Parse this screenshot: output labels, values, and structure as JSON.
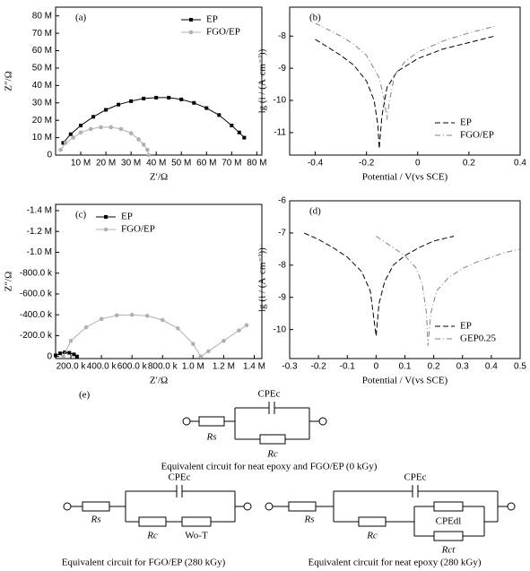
{
  "chart_data": [
    {
      "type": "line",
      "panel_label": "(a)",
      "x_label": "Z′/Ω",
      "y_label": "Z″/Ω",
      "legend": "upper center",
      "xlim": [
        0,
        82000000
      ],
      "ylim": [
        0,
        85000000
      ],
      "xticks": [
        {
          "value": 10000000,
          "label": "10 M"
        },
        {
          "value": 20000000,
          "label": "20 M"
        },
        {
          "value": 30000000,
          "label": "30 M"
        },
        {
          "value": 40000000,
          "label": "40 M"
        },
        {
          "value": 50000000,
          "label": "50 M"
        },
        {
          "value": 60000000,
          "label": "60 M"
        },
        {
          "value": 70000000,
          "label": "70 M"
        },
        {
          "value": 80000000,
          "label": "80 M"
        }
      ],
      "yticks": [
        0,
        {
          "value": 10000000,
          "label": "10 M"
        },
        {
          "value": 20000000,
          "label": "20 M"
        },
        {
          "value": 30000000,
          "label": "30 M"
        },
        {
          "value": 40000000,
          "label": "40 M"
        },
        {
          "value": 50000000,
          "label": "50 M"
        },
        {
          "value": 60000000,
          "label": "60 M"
        },
        {
          "value": 70000000,
          "label": "70 M"
        },
        {
          "value": 80000000,
          "label": "80 M"
        }
      ],
      "series": [
        {
          "name": "EP",
          "color": "#000000",
          "marker": "square",
          "line_style": "solid",
          "x": [
            3000000,
            6000000,
            10000000,
            15000000,
            20000000,
            25000000,
            30000000,
            35000000,
            40000000,
            45000000,
            50000000,
            55000000,
            60000000,
            65000000,
            70000000,
            73000000,
            75000000
          ],
          "values": [
            7000000,
            12000000,
            17000000,
            22000000,
            26000000,
            29000000,
            31000000,
            32500000,
            33000000,
            33000000,
            32000000,
            30000000,
            27000000,
            23000000,
            17000000,
            13000000,
            10000000
          ]
        },
        {
          "name": "FGO/EP",
          "color": "#b0b0b0",
          "marker": "circle",
          "line_style": "solid",
          "x": [
            2000000,
            4000000,
            7000000,
            10000000,
            14000000,
            18000000,
            22000000,
            26000000,
            30000000,
            33000000,
            35000000,
            36500000,
            37000000
          ],
          "values": [
            3000000,
            7000000,
            10000000,
            13000000,
            15000000,
            16000000,
            16000000,
            15000000,
            12500000,
            9000000,
            6000000,
            3000000,
            0
          ]
        }
      ]
    },
    {
      "type": "line",
      "panel_label": "(b)",
      "x_label": "Potential / V(vs SCE)",
      "y_label": "lg (i / (A·cm⁻²))",
      "legend": "lower right",
      "xlim": [
        -0.5,
        0.4
      ],
      "ylim": [
        -11.7,
        -7.1
      ],
      "xticks": [
        -0.4,
        -0.2,
        0,
        0.2,
        0.4
      ],
      "yticks": [
        -8,
        -9,
        -10,
        -11
      ],
      "series": [
        {
          "name": "EP",
          "color": "#000000",
          "marker": null,
          "line_style": "dashed",
          "x": [
            -0.4,
            -0.35,
            -0.3,
            -0.25,
            -0.2,
            -0.17,
            -0.155,
            -0.15,
            -0.14,
            -0.12,
            -0.08,
            0,
            0.1,
            0.2,
            0.3
          ],
          "values": [
            -8.1,
            -8.35,
            -8.6,
            -8.9,
            -9.4,
            -10,
            -10.8,
            -11.5,
            -10.5,
            -9.6,
            -9.1,
            -8.7,
            -8.4,
            -8.2,
            -8.0
          ]
        },
        {
          "name": "FGO/EP",
          "color": "#808080",
          "marker": null,
          "line_style": "dashdot",
          "x": [
            -0.4,
            -0.35,
            -0.3,
            -0.25,
            -0.2,
            -0.15,
            -0.13,
            -0.12,
            -0.11,
            -0.09,
            -0.05,
            0,
            0.1,
            0.2,
            0.3
          ],
          "values": [
            -7.6,
            -7.8,
            -8.0,
            -8.25,
            -8.6,
            -9.3,
            -10,
            -10.6,
            -10,
            -9.2,
            -8.8,
            -8.5,
            -8.15,
            -7.9,
            -7.7
          ]
        }
      ]
    },
    {
      "type": "line",
      "panel_label": "(c)",
      "x_label": "Z′/Ω",
      "y_label": "Z″/Ω",
      "legend": "upper left",
      "xlim": [
        100000,
        1450000
      ],
      "ylim": [
        20000,
        -1460000
      ],
      "xticks": [
        {
          "value": 200000,
          "label": "200.0 k"
        },
        {
          "value": 400000,
          "label": "400.0 k"
        },
        {
          "value": 600000,
          "label": "600.0 k"
        },
        {
          "value": 800000,
          "label": "800.0 k"
        },
        {
          "value": 1000000,
          "label": "1.0 M"
        },
        {
          "value": 1200000,
          "label": "1.2 M"
        },
        {
          "value": 1400000,
          "label": "1.4 M"
        }
      ],
      "yticks": [
        0,
        {
          "value": -200000,
          "label": "-200.0 k"
        },
        {
          "value": -400000,
          "label": "-400.0 k"
        },
        {
          "value": -600000,
          "label": "-600.0 k"
        },
        {
          "value": -800000,
          "label": "-800.0 k"
        },
        {
          "value": -1000000,
          "label": "-1.0 M"
        },
        {
          "value": -1200000,
          "label": "-1.2 M"
        },
        {
          "value": -1400000,
          "label": "-1.4 M"
        }
      ],
      "series": [
        {
          "name": "EP",
          "color": "#000000",
          "marker": "square",
          "line_style": "solid",
          "x": [
            100000,
            130000,
            160000,
            190000,
            220000,
            240000
          ],
          "values": [
            -10000,
            -30000,
            -40000,
            -35000,
            -20000,
            0
          ]
        },
        {
          "name": "FGO/EP",
          "color": "#b0b0b0",
          "marker": "circle",
          "line_style": "solid",
          "x": [
            150000,
            200000,
            300000,
            400000,
            500000,
            600000,
            700000,
            800000,
            900000,
            1000000,
            1050000,
            1100000,
            1200000,
            1300000,
            1350000
          ],
          "values": [
            0,
            -150000,
            -280000,
            -360000,
            -395000,
            -400000,
            -390000,
            -350000,
            -270000,
            -120000,
            0,
            -50000,
            -150000,
            -250000,
            -300000
          ]
        }
      ]
    },
    {
      "type": "line",
      "panel_label": "(d)",
      "x_label": "Potential / V(vs SCE)",
      "y_label": "lg (i / (A·cm⁻²))",
      "legend": "lower right",
      "xlim": [
        -0.3,
        0.5
      ],
      "ylim": [
        -10.9,
        -6
      ],
      "xticks": [
        -0.3,
        -0.2,
        -0.1,
        0,
        0.1,
        0.2,
        0.3,
        0.4,
        0.5
      ],
      "yticks": [
        -6,
        -7,
        -8,
        -9,
        -10
      ],
      "series": [
        {
          "name": "EP",
          "color": "#000000",
          "marker": null,
          "line_style": "dashed",
          "x": [
            -0.25,
            -0.2,
            -0.15,
            -0.1,
            -0.05,
            -0.02,
            0,
            0.01,
            0.03,
            0.06,
            0.1,
            0.15,
            0.2,
            0.27
          ],
          "values": [
            -7.0,
            -7.2,
            -7.45,
            -7.75,
            -8.2,
            -8.8,
            -10.2,
            -9.2,
            -8.5,
            -8.0,
            -7.7,
            -7.45,
            -7.25,
            -7.1
          ]
        },
        {
          "name": "GEP0.25",
          "color": "#808080",
          "marker": null,
          "line_style": "dashdot",
          "x": [
            0,
            0.05,
            0.1,
            0.14,
            0.16,
            0.175,
            0.18,
            0.19,
            0.21,
            0.25,
            0.3,
            0.35,
            0.4,
            0.45,
            0.5
          ],
          "values": [
            -7.1,
            -7.4,
            -7.7,
            -8.1,
            -8.6,
            -9.5,
            -10.5,
            -9.5,
            -8.8,
            -8.4,
            -8.1,
            -7.9,
            -7.75,
            -7.6,
            -7.5
          ]
        }
      ]
    }
  ],
  "circuits": {
    "panel_label": "(e)",
    "items": [
      {
        "cpe": "CPEc",
        "rs": "Rs",
        "rc": "Rc",
        "caption": "Equivalent circuit for neat epoxy and FGO/EP (0 kGy)"
      },
      {
        "cpe": "CPEc",
        "rs": "Rs",
        "rc": "Rc",
        "w": "Wo-T",
        "caption": "Equivalent circuit for FGO/EP (280 kGy)"
      },
      {
        "cpe": "CPEc",
        "rs": "Rs",
        "rc": "Rc",
        "cpedl": "CPEdl",
        "rct": "Rct",
        "caption": "Equivalent circuit for neat epoxy (280 kGy)"
      }
    ]
  }
}
